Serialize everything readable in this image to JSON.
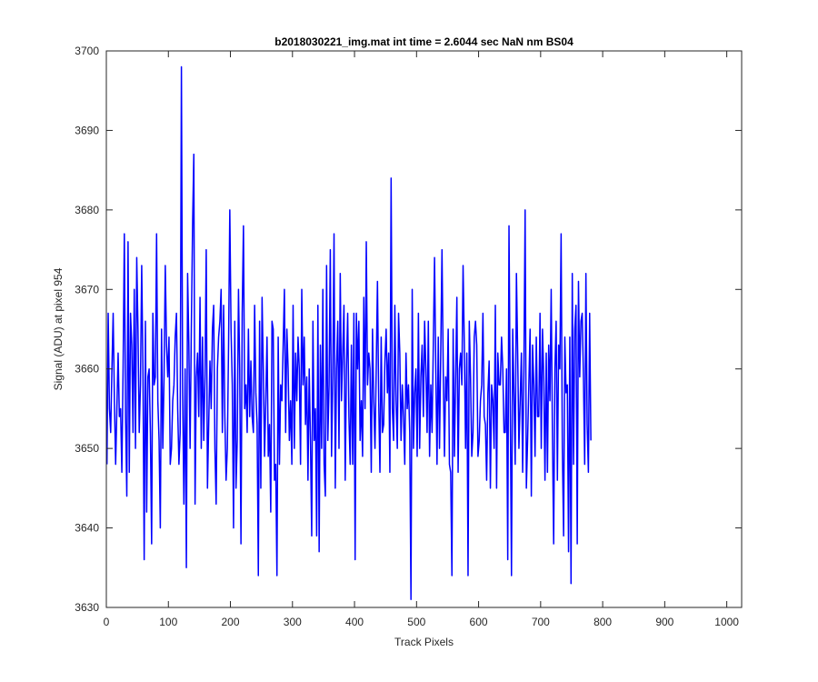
{
  "chart_data": {
    "type": "line",
    "title": "b2018030221_img.mat int time = 2.6044 sec  NaN nm BS04",
    "xlabel": "Track Pixels",
    "ylabel": "Signal (ADU) at pixel 954",
    "xlim": [
      0,
      1024
    ],
    "ylim": [
      3630,
      3700
    ],
    "xticks": [
      0,
      100,
      200,
      300,
      400,
      500,
      600,
      700,
      800,
      900,
      1000
    ],
    "yticks": [
      3630,
      3640,
      3650,
      3660,
      3670,
      3680,
      3690,
      3700
    ],
    "grid": false,
    "line_color": "#0000ff",
    "series": [
      {
        "x_start": 1,
        "x_step": 2,
        "values": [
          3648,
          3667,
          3655,
          3652,
          3660,
          3667,
          3656,
          3648,
          3655,
          3662,
          3654,
          3655,
          3647,
          3660,
          3677,
          3654,
          3644,
          3676,
          3647,
          3667,
          3663,
          3652,
          3670,
          3650,
          3674,
          3665,
          3652,
          3658,
          3673,
          3660,
          3636,
          3666,
          3642,
          3659,
          3660,
          3652,
          3638,
          3667,
          3658,
          3659,
          3677,
          3656,
          3651,
          3640,
          3665,
          3650,
          3659,
          3673,
          3663,
          3659,
          3664,
          3648,
          3650,
          3656,
          3658,
          3664,
          3667,
          3655,
          3648,
          3652,
          3698,
          3657,
          3643,
          3660,
          3635,
          3672,
          3663,
          3650,
          3665,
          3678,
          3687,
          3643,
          3659,
          3662,
          3654,
          3669,
          3650,
          3664,
          3651,
          3659,
          3675,
          3645,
          3653,
          3661,
          3655,
          3665,
          3668,
          3650,
          3643,
          3660,
          3664,
          3666,
          3670,
          3652,
          3668,
          3654,
          3646,
          3650,
          3663,
          3680,
          3665,
          3658,
          3640,
          3666,
          3645,
          3651,
          3670,
          3660,
          3638,
          3667,
          3678,
          3655,
          3658,
          3652,
          3665,
          3654,
          3661,
          3654,
          3652,
          3668,
          3657,
          3653,
          3634,
          3666,
          3645,
          3669,
          3660,
          3649,
          3656,
          3664,
          3649,
          3653,
          3642,
          3666,
          3665,
          3646,
          3648,
          3634,
          3664,
          3648,
          3658,
          3656,
          3663,
          3670,
          3652,
          3665,
          3660,
          3651,
          3656,
          3648,
          3668,
          3650,
          3662,
          3656,
          3664,
          3660,
          3648,
          3670,
          3658,
          3664,
          3653,
          3659,
          3646,
          3660,
          3651,
          3639,
          3666,
          3651,
          3655,
          3639,
          3668,
          3637,
          3663,
          3650,
          3670,
          3648,
          3644,
          3673,
          3651,
          3658,
          3675,
          3649,
          3659,
          3677,
          3645,
          3660,
          3666,
          3650,
          3672,
          3656,
          3662,
          3668,
          3646,
          3660,
          3667,
          3654,
          3648,
          3663,
          3648,
          3667,
          3636,
          3667,
          3660,
          3666,
          3651,
          3656,
          3649,
          3669,
          3655,
          3676,
          3658,
          3662,
          3660,
          3647,
          3665,
          3656,
          3650,
          3660,
          3671,
          3656,
          3647,
          3664,
          3652,
          3653,
          3661,
          3665,
          3657,
          3662,
          3647,
          3684,
          3655,
          3651,
          3668,
          3656,
          3650,
          3667,
          3662,
          3651,
          3658,
          3654,
          3648,
          3662,
          3655,
          3658,
          3652,
          3631,
          3670,
          3650,
          3657,
          3660,
          3649,
          3667,
          3650,
          3659,
          3663,
          3654,
          3666,
          3660,
          3652,
          3666,
          3649,
          3658,
          3652,
          3663,
          3674,
          3660,
          3648,
          3664,
          3650,
          3662,
          3675,
          3660,
          3649,
          3659,
          3656,
          3665,
          3648,
          3647,
          3634,
          3665,
          3649,
          3659,
          3669,
          3647,
          3660,
          3662,
          3658,
          3673,
          3663,
          3650,
          3662,
          3634,
          3666,
          3659,
          3649,
          3652,
          3664,
          3666,
          3663,
          3649,
          3651,
          3656,
          3658,
          3667,
          3654,
          3653,
          3646,
          3657,
          3661,
          3645,
          3658,
          3656,
          3650,
          3668,
          3645,
          3662,
          3658,
          3658,
          3664,
          3660,
          3652,
          3652,
          3660,
          3636,
          3678,
          3656,
          3634,
          3665,
          3657,
          3648,
          3672,
          3662,
          3650,
          3656,
          3662,
          3647,
          3660,
          3680,
          3645,
          3651,
          3658,
          3665,
          3644,
          3663,
          3658,
          3649,
          3664,
          3654,
          3654,
          3667,
          3650,
          3665,
          3659,
          3646,
          3662,
          3647,
          3663,
          3656,
          3670,
          3652,
          3638,
          3660,
          3666,
          3646,
          3663,
          3660,
          3677,
          3650,
          3639,
          3664,
          3657,
          3658,
          3637,
          3664,
          3633,
          3672,
          3648,
          3665,
          3668,
          3638,
          3671,
          3659,
          3666,
          3667,
          3659,
          3648,
          3672,
          3653,
          3647,
          3667,
          3651
        ]
      }
    ]
  }
}
